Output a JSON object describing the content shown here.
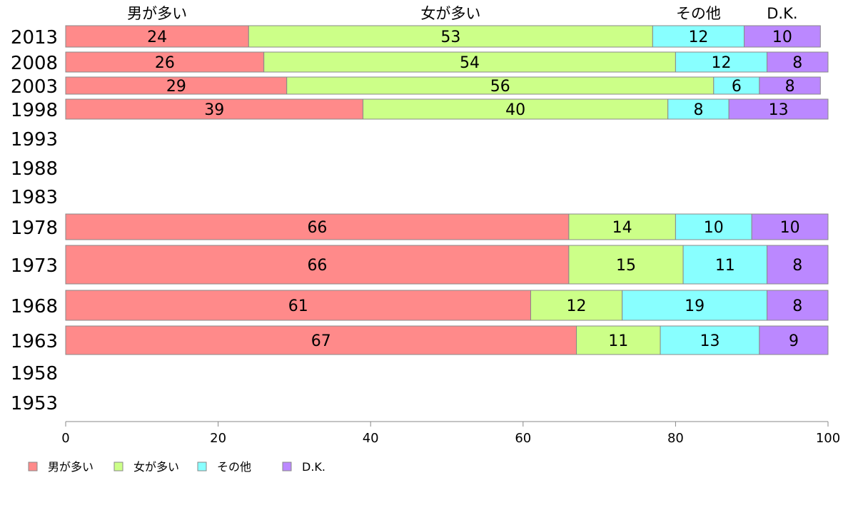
{
  "chart_data": {
    "type": "bar",
    "orientation": "horizontal",
    "stacked": true,
    "title": "",
    "xlabel": "",
    "ylabel": "",
    "xlim": [
      0,
      100
    ],
    "x_ticks": [
      0,
      20,
      40,
      60,
      80,
      100
    ],
    "grid": false,
    "legend_position": "bottom-left",
    "categories": [
      "2013",
      "2008",
      "2003",
      "1998",
      "1993",
      "1988",
      "1983",
      "1978",
      "1973",
      "1968",
      "1963",
      "1958",
      "1953"
    ],
    "series": [
      {
        "name": "男が多い",
        "color": "#ff8a8a",
        "values": [
          24,
          26,
          29,
          39,
          null,
          null,
          null,
          66,
          66,
          61,
          67,
          null,
          null
        ]
      },
      {
        "name": "女が多い",
        "color": "#ccff88",
        "values": [
          53,
          54,
          56,
          40,
          null,
          null,
          null,
          14,
          15,
          12,
          11,
          null,
          null
        ]
      },
      {
        "name": "その他",
        "color": "#88ffff",
        "values": [
          12,
          12,
          6,
          8,
          null,
          null,
          null,
          10,
          11,
          19,
          13,
          null,
          null
        ]
      },
      {
        "name": "D.K.",
        "color": "#bb88ff",
        "values": [
          10,
          8,
          8,
          13,
          null,
          null,
          null,
          10,
          8,
          8,
          9,
          null,
          null
        ]
      }
    ]
  }
}
